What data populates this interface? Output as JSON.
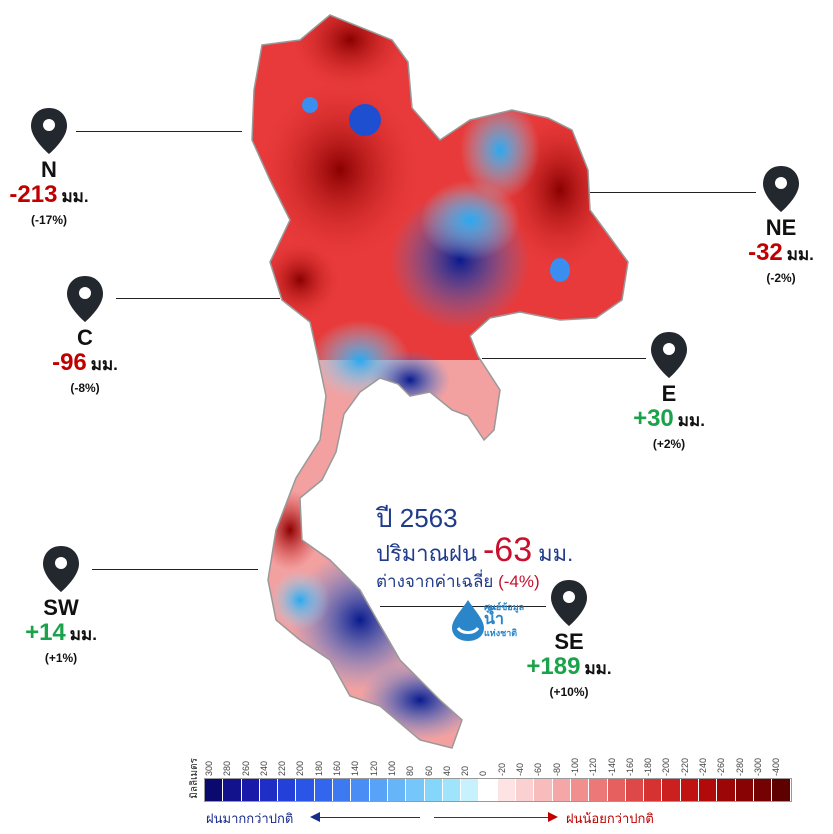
{
  "regions": {
    "N": {
      "code": "N",
      "value": "-213",
      "unit": "มม.",
      "pct": "(-17%)",
      "sign": "neg"
    },
    "NE": {
      "code": "NE",
      "value": "-32",
      "unit": "มม.",
      "pct": "(-2%)",
      "sign": "neg"
    },
    "C": {
      "code": "C",
      "value": "-96",
      "unit": "มม.",
      "pct": "(-8%)",
      "sign": "neg"
    },
    "E": {
      "code": "E",
      "value": "+30",
      "unit": "มม.",
      "pct": "(+2%)",
      "sign": "pos"
    },
    "SW": {
      "code": "SW",
      "value": "+14",
      "unit": "มม.",
      "pct": "(+1%)",
      "sign": "pos"
    },
    "SE": {
      "code": "SE",
      "value": "+189",
      "unit": "มม.",
      "pct": "(+10%)",
      "sign": "pos"
    }
  },
  "summary": {
    "year_label": "ปี 2563",
    "amount_prefix": "ปริมาณฝน",
    "amount_value": "-63",
    "amount_unit": "มม.",
    "diff_label": "ต่างจากค่าเฉลี่ย",
    "diff_pct": "(-4%)"
  },
  "logo": {
    "line1": "ศูนย์ข้อมูล",
    "line2": "น้ำ",
    "line3": "แห่งชาติ"
  },
  "legend": {
    "unit_label": "มิลลิเมตร",
    "ticks": [
      "300",
      "280",
      "260",
      "240",
      "220",
      "200",
      "180",
      "160",
      "140",
      "120",
      "100",
      "80",
      "60",
      "40",
      "20",
      "0",
      "-20",
      "-40",
      "-60",
      "-80",
      "-100",
      "-120",
      "-140",
      "-160",
      "-180",
      "-200",
      "-220",
      "-240",
      "-260",
      "-280",
      "-300",
      "-400"
    ],
    "colors": [
      "#0a0a6e",
      "#12128c",
      "#1a1aa8",
      "#1f2ec4",
      "#2340d8",
      "#2a55e6",
      "#3366ee",
      "#3d7af2",
      "#4a8ef5",
      "#58a2f7",
      "#66b5f8",
      "#75c6fa",
      "#84d6fb",
      "#9fe3fc",
      "#c6f1fd",
      "#ffffff",
      "#fde3e3",
      "#fbd0d0",
      "#f8bcbc",
      "#f5a6a6",
      "#f18f8f",
      "#ec7878",
      "#e66060",
      "#df4848",
      "#d63232",
      "#cc2020",
      "#c01212",
      "#b00a0a",
      "#9c0606",
      "#880404",
      "#740202",
      "#5e0000"
    ],
    "wetter_label": "ฝนมากกว่าปกติ",
    "drier_label": "ฝนน้อยกว่าปกติ"
  },
  "colors": {
    "negative": "#c00000",
    "positive": "#1aa34a",
    "title_blue": "#1f3b8a"
  }
}
